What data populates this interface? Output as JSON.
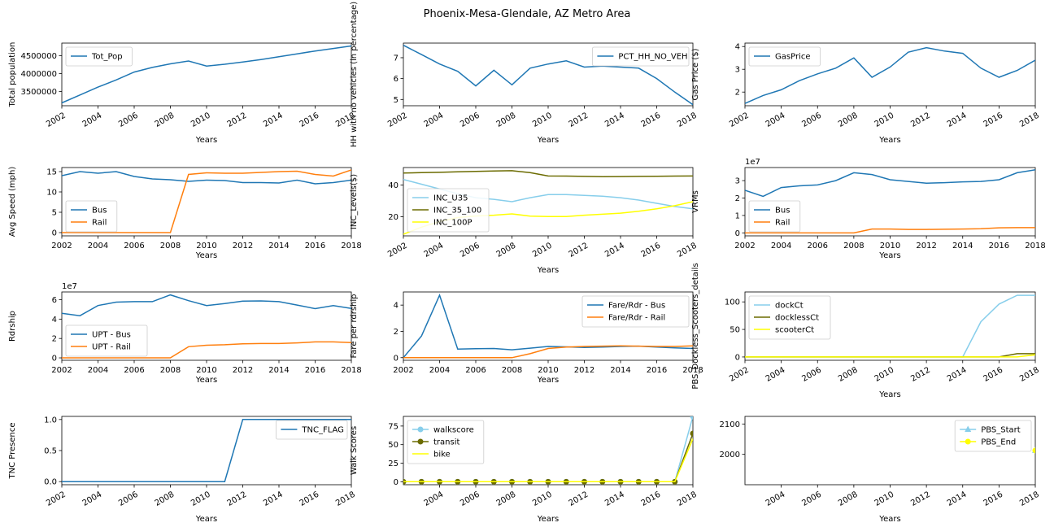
{
  "figure": {
    "title": "Phoenix-Mesa-Glendale, AZ Metro Area"
  },
  "colors": {
    "blue": "#1f77b4",
    "orange": "#ff7f0e",
    "skyblue": "#87ceeb",
    "olive": "#6b6b00",
    "yellow": "#ffff00"
  },
  "chart_data": [
    {
      "type": "line",
      "xlabel": "Years",
      "ylabel": "Total population",
      "xlim": [
        2002,
        2018
      ],
      "ylim": [
        3100000,
        4850000
      ],
      "xticks": [
        "2002",
        "2004",
        "2006",
        "2008",
        "2010",
        "2012",
        "2014",
        "2016",
        "2018"
      ],
      "yticks": [
        "3500000",
        "4000000",
        "4500000"
      ],
      "legend_position": "upper-left",
      "x": [
        2002,
        2003,
        2004,
        2005,
        2006,
        2007,
        2008,
        2009,
        2010,
        2011,
        2012,
        2013,
        2014,
        2015,
        2016,
        2017,
        2018
      ],
      "series": [
        {
          "name": "Tot_Pop",
          "color": "#1f77b4",
          "values": [
            3180000,
            3400000,
            3620000,
            3820000,
            4040000,
            4170000,
            4270000,
            4350000,
            4210000,
            4260000,
            4320000,
            4390000,
            4470000,
            4550000,
            4630000,
            4700000,
            4770000
          ]
        }
      ]
    },
    {
      "type": "line",
      "xlabel": "Years",
      "ylabel": "HH with no vehicles (in percentage)",
      "xlim": [
        2002,
        2018
      ],
      "ylim": [
        4.7,
        7.7
      ],
      "xticks": [
        "2002",
        "2004",
        "2006",
        "2008",
        "2010",
        "2012",
        "2014",
        "2016",
        "2018"
      ],
      "yticks": [
        "5",
        "6",
        "7"
      ],
      "legend_position": "upper-right",
      "x": [
        2002,
        2003,
        2004,
        2005,
        2006,
        2007,
        2008,
        2009,
        2010,
        2011,
        2012,
        2013,
        2014,
        2015,
        2016,
        2017,
        2018
      ],
      "series": [
        {
          "name": "PCT_HH_NO_VEH",
          "color": "#1f77b4",
          "values": [
            7.6,
            7.15,
            6.7,
            6.35,
            5.65,
            6.4,
            5.7,
            6.5,
            6.7,
            6.85,
            6.55,
            6.6,
            6.55,
            6.5,
            6.0,
            5.35,
            4.75
          ]
        }
      ]
    },
    {
      "type": "line",
      "xlabel": "Years",
      "ylabel": "Gas Price ($)",
      "xlim": [
        2002,
        2018
      ],
      "ylim": [
        1.4,
        4.15
      ],
      "xticks": [
        "2002",
        "2004",
        "2006",
        "2008",
        "2010",
        "2012",
        "2014",
        "2016",
        "2018"
      ],
      "yticks": [
        "2",
        "3",
        "4"
      ],
      "legend_position": "upper-left",
      "x": [
        2002,
        2003,
        2004,
        2005,
        2006,
        2007,
        2008,
        2009,
        2010,
        2011,
        2012,
        2013,
        2014,
        2015,
        2016,
        2017,
        2018
      ],
      "series": [
        {
          "name": "GasPrice",
          "color": "#1f77b4",
          "values": [
            1.5,
            1.85,
            2.1,
            2.5,
            2.8,
            3.05,
            3.5,
            2.65,
            3.1,
            3.75,
            3.95,
            3.8,
            3.7,
            3.05,
            2.65,
            2.95,
            3.4
          ]
        }
      ]
    },
    {
      "type": "line",
      "xlabel": "Years",
      "ylabel": "Avg Speed (mph)",
      "xlim": [
        2002,
        2018
      ],
      "ylim": [
        -0.8,
        16
      ],
      "xticks": [
        "2002",
        "2004",
        "2006",
        "2008",
        "2010",
        "2012",
        "2014",
        "2016",
        "2018"
      ],
      "yticks": [
        "0",
        "5",
        "10",
        "15"
      ],
      "legend_position": "lower-left",
      "x": [
        2002,
        2003,
        2004,
        2005,
        2006,
        2007,
        2008,
        2009,
        2010,
        2011,
        2012,
        2013,
        2014,
        2015,
        2016,
        2017,
        2018
      ],
      "series": [
        {
          "name": "Bus",
          "color": "#1f77b4",
          "values": [
            14.0,
            15.0,
            14.6,
            15.0,
            13.8,
            13.2,
            13.0,
            12.6,
            12.9,
            12.8,
            12.3,
            12.3,
            12.2,
            12.9,
            12.0,
            12.3,
            12.9
          ]
        },
        {
          "name": "Rail",
          "color": "#ff7f0e",
          "values": [
            0,
            0,
            0,
            0,
            0,
            0,
            0,
            14.3,
            14.7,
            14.6,
            14.6,
            14.8,
            15.0,
            15.1,
            14.3,
            13.9,
            15.4
          ]
        }
      ]
    },
    {
      "type": "line",
      "xlabel": "Years",
      "ylabel": "INC_Levels($)",
      "xlim": [
        2002,
        2018
      ],
      "ylim": [
        8,
        51
      ],
      "xticks": [
        "2002",
        "2004",
        "2006",
        "2008",
        "2010",
        "2012",
        "2014",
        "2016",
        "2018"
      ],
      "yticks": [
        "20",
        "40"
      ],
      "legend_position": "lower-left",
      "x": [
        2002,
        2003,
        2004,
        2005,
        2006,
        2007,
        2008,
        2009,
        2010,
        2011,
        2012,
        2013,
        2014,
        2015,
        2016,
        2017,
        2018
      ],
      "series": [
        {
          "name": "INC_U35",
          "color": "#87ceeb",
          "values": [
            43.5,
            40.5,
            37.5,
            34.5,
            32.0,
            31.0,
            29.5,
            32.0,
            34.0,
            34.0,
            33.5,
            33.0,
            32.0,
            30.5,
            28.5,
            26.5,
            25.0
          ]
        },
        {
          "name": "INC_35_100",
          "color": "#6b6b00",
          "values": [
            47.5,
            47.8,
            48.0,
            48.3,
            48.6,
            48.8,
            49.0,
            47.8,
            45.7,
            45.6,
            45.4,
            45.2,
            45.3,
            45.4,
            45.5,
            45.6,
            45.7
          ]
        },
        {
          "name": "INC_100P",
          "color": "#ffff00",
          "values": [
            9.0,
            13.5,
            17.0,
            19.5,
            20.5,
            21.0,
            21.8,
            20.4,
            20.2,
            20.2,
            21.0,
            21.6,
            22.3,
            23.5,
            25.0,
            27.0,
            29.5
          ]
        }
      ]
    },
    {
      "type": "line",
      "xlabel": "Years",
      "ylabel": "VRMs",
      "y_scale_label": "1e7",
      "xlim": [
        2002,
        2018
      ],
      "ylim": [
        -0.17,
        3.75
      ],
      "xticks": [
        "2002",
        "2004",
        "2006",
        "2008",
        "2010",
        "2012",
        "2014",
        "2016",
        "2018"
      ],
      "yticks": [
        "0",
        "1",
        "2",
        "3"
      ],
      "legend_position": "lower-left",
      "x": [
        2002,
        2003,
        2004,
        2005,
        2006,
        2007,
        2008,
        2009,
        2010,
        2011,
        2012,
        2013,
        2014,
        2015,
        2016,
        2017,
        2018
      ],
      "series": [
        {
          "name": "Bus",
          "color": "#1f77b4",
          "values": [
            2.45,
            2.1,
            2.6,
            2.7,
            2.75,
            3.0,
            3.45,
            3.35,
            3.05,
            2.95,
            2.85,
            2.88,
            2.93,
            2.95,
            3.05,
            3.45,
            3.62
          ]
        },
        {
          "name": "Rail",
          "color": "#ff7f0e",
          "values": [
            0,
            0,
            0,
            0,
            0,
            0,
            0,
            0.22,
            0.22,
            0.2,
            0.2,
            0.21,
            0.22,
            0.24,
            0.29,
            0.3,
            0.3
          ]
        }
      ]
    },
    {
      "type": "line",
      "xlabel": "Years",
      "ylabel": "Rdrship",
      "y_scale_label": "1e7",
      "xlim": [
        2002,
        2018
      ],
      "ylim": [
        -0.25,
        6.8
      ],
      "xticks": [
        "2002",
        "2004",
        "2006",
        "2008",
        "2010",
        "2012",
        "2014",
        "2016",
        "2018"
      ],
      "yticks": [
        "0",
        "2",
        "4",
        "6"
      ],
      "legend_position": "lower-left",
      "x": [
        2002,
        2003,
        2004,
        2005,
        2006,
        2007,
        2008,
        2009,
        2010,
        2011,
        2012,
        2013,
        2014,
        2015,
        2016,
        2017,
        2018
      ],
      "series": [
        {
          "name": "UPT - Bus",
          "color": "#1f77b4",
          "values": [
            4.6,
            4.35,
            5.4,
            5.75,
            5.8,
            5.8,
            6.5,
            5.9,
            5.4,
            5.6,
            5.85,
            5.88,
            5.8,
            5.45,
            5.08,
            5.4,
            5.1
          ]
        },
        {
          "name": "UPT - Rail",
          "color": "#ff7f0e",
          "values": [
            0,
            0,
            0,
            0,
            0,
            0,
            0,
            1.15,
            1.3,
            1.35,
            1.45,
            1.48,
            1.48,
            1.55,
            1.65,
            1.65,
            1.58
          ]
        }
      ]
    },
    {
      "type": "line",
      "xlabel": "Years",
      "ylabel": "Fare per rdrship",
      "xlim": [
        2002,
        2018
      ],
      "ylim": [
        -0.2,
        5.0
      ],
      "xticks": [
        "2002",
        "2004",
        "2006",
        "2008",
        "2010",
        "2012",
        "2014",
        "2016",
        "2018"
      ],
      "yticks": [
        "0",
        "2",
        "4"
      ],
      "legend_position": "upper-right",
      "x": [
        2002,
        2003,
        2004,
        2005,
        2006,
        2007,
        2008,
        2009,
        2010,
        2011,
        2012,
        2013,
        2014,
        2015,
        2016,
        2017,
        2018
      ],
      "series": [
        {
          "name": "Fare/Rdr - Bus",
          "color": "#1f77b4",
          "values": [
            0.0,
            1.65,
            4.75,
            0.65,
            0.68,
            0.7,
            0.6,
            0.72,
            0.85,
            0.82,
            0.78,
            0.8,
            0.85,
            0.88,
            0.8,
            0.75,
            0.7
          ]
        },
        {
          "name": "Fare/Rdr - Rail",
          "color": "#ff7f0e",
          "values": [
            0,
            0,
            0,
            0,
            0,
            0,
            0,
            0.3,
            0.7,
            0.8,
            0.85,
            0.88,
            0.9,
            0.88,
            0.85,
            0.85,
            0.9
          ]
        }
      ]
    },
    {
      "type": "line",
      "xlabel": "Years",
      "ylabel": "PBS_Dockless_Scooters_details",
      "xlim": [
        2002,
        2018
      ],
      "ylim": [
        -6,
        118
      ],
      "xticks": [
        "2002",
        "2004",
        "2006",
        "2008",
        "2010",
        "2012",
        "2014",
        "2016",
        "2018"
      ],
      "yticks": [
        "0",
        "50",
        "100"
      ],
      "legend_position": "upper-left",
      "x": [
        2002,
        2003,
        2004,
        2005,
        2006,
        2007,
        2008,
        2009,
        2010,
        2011,
        2012,
        2013,
        2014,
        2015,
        2016,
        2017,
        2018
      ],
      "series": [
        {
          "name": "dockCt",
          "color": "#87ceeb",
          "values": [
            0,
            0,
            0,
            0,
            0,
            0,
            0,
            0,
            0,
            0,
            0,
            0,
            0,
            64,
            96,
            112,
            112
          ]
        },
        {
          "name": "docklessCt",
          "color": "#6b6b00",
          "values": [
            0,
            0,
            0,
            0,
            0,
            0,
            0,
            0,
            0,
            0,
            0,
            0,
            0,
            0,
            0,
            6,
            6
          ]
        },
        {
          "name": "scooterCt",
          "color": "#ffff00",
          "values": [
            0,
            0,
            0,
            0,
            0,
            0,
            0,
            0,
            0,
            0,
            0,
            0,
            0,
            0,
            0,
            0,
            4
          ]
        }
      ]
    },
    {
      "type": "line",
      "xlabel": "Years",
      "ylabel": "TNC Presence",
      "xlim": [
        2002,
        2018
      ],
      "ylim": [
        -0.05,
        1.05
      ],
      "xticks": [
        "2002",
        "2004",
        "2006",
        "2008",
        "2010",
        "2012",
        "2014",
        "2016",
        "2018"
      ],
      "yticks": [
        "0.0",
        "0.5",
        "1.0"
      ],
      "legend_position": "upper-right",
      "x": [
        2002,
        2003,
        2004,
        2005,
        2006,
        2007,
        2008,
        2009,
        2010,
        2011,
        2012,
        2013,
        2014,
        2015,
        2016,
        2017,
        2018
      ],
      "series": [
        {
          "name": "TNC_FLAG",
          "color": "#1f77b4",
          "values": [
            0,
            0,
            0,
            0,
            0,
            0,
            0,
            0,
            0,
            0,
            1,
            1,
            1,
            1,
            1,
            1,
            1
          ]
        }
      ]
    },
    {
      "type": "line",
      "xlabel": "Years",
      "ylabel": "Walk Scores",
      "xlim": [
        2002,
        2018
      ],
      "ylim": [
        -4,
        88
      ],
      "xticks": [
        "2004",
        "2006",
        "2008",
        "2010",
        "2012",
        "2014",
        "2016",
        "2018"
      ],
      "yticks": [
        "0",
        "25",
        "50",
        "75"
      ],
      "legend_position": "upper-left",
      "x": [
        2002,
        2003,
        2004,
        2005,
        2006,
        2007,
        2008,
        2009,
        2010,
        2011,
        2012,
        2013,
        2014,
        2015,
        2016,
        2017,
        2018
      ],
      "series": [
        {
          "name": "walkscore",
          "color": "#87ceeb",
          "marker": "circle",
          "values": [
            0,
            0,
            0,
            0,
            0,
            0,
            0,
            0,
            0,
            0,
            0,
            0,
            0,
            0,
            0,
            0,
            88
          ]
        },
        {
          "name": "transit",
          "color": "#6b6b00",
          "marker": "circle",
          "values": [
            0,
            0,
            0,
            0,
            0,
            0,
            0,
            0,
            0,
            0,
            0,
            0,
            0,
            0,
            0,
            0,
            65
          ]
        },
        {
          "name": "bike",
          "color": "#ffff00",
          "values": [
            0,
            0,
            0,
            0,
            0,
            0,
            0,
            0,
            0,
            0,
            0,
            0,
            0,
            0,
            0,
            0,
            58
          ]
        }
      ]
    },
    {
      "type": "line",
      "xlabel": "Years",
      "ylabel": "",
      "xlim": [
        2002,
        2018
      ],
      "ylim": [
        1900,
        2125
      ],
      "xticks": [
        "2004",
        "2006",
        "2008",
        "2010",
        "2012",
        "2014",
        "2016",
        "2018"
      ],
      "yticks": [
        "2000",
        "2100"
      ],
      "legend_position": "upper-right",
      "x": [
        2018
      ],
      "series": [
        {
          "name": "PBS_Start",
          "color": "#87ceeb",
          "marker": "triangle",
          "values": [
            2013
          ]
        },
        {
          "name": "PBS_End",
          "color": "#ffff00",
          "marker": "circle",
          "values": [
            2013
          ]
        }
      ]
    }
  ]
}
